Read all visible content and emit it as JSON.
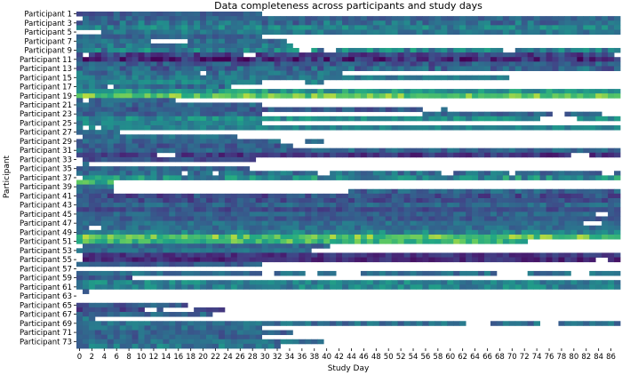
{
  "chart_data": {
    "type": "heatmap",
    "title": "Data completeness across participants and study days",
    "xlabel": "Study Day",
    "ylabel": "Participant",
    "colormap": "viridis",
    "missing_color": "#ffffff",
    "x_ticks": [
      "0",
      "2",
      "4",
      "6",
      "8",
      "10",
      "12",
      "14",
      "16",
      "18",
      "20",
      "22",
      "24",
      "26",
      "28",
      "30",
      "32",
      "34",
      "36",
      "38",
      "40",
      "42",
      "44",
      "46",
      "48",
      "50",
      "52",
      "54",
      "56",
      "58",
      "60",
      "62",
      "64",
      "66",
      "68",
      "70",
      "72",
      "74",
      "76",
      "78",
      "80",
      "82",
      "84",
      "86"
    ],
    "y_tick_labels": [
      "Participant 1",
      "Participant 3",
      "Participant 5",
      "Participant 7",
      "Participant 9",
      "Participant 11",
      "Participant 13",
      "Participant 15",
      "Participant 17",
      "Participant 19",
      "Participant 21",
      "Participant 23",
      "Participant 25",
      "Participant 27",
      "Participant 29",
      "Participant 31",
      "Participant 33",
      "Participant 35",
      "Participant 37",
      "Participant 39",
      "Participant 41",
      "Participant 43",
      "Participant 45",
      "Participant 47",
      "Participant 49",
      "Participant 51",
      "Participant 53",
      "Participant 55",
      "Participant 57",
      "Participant 59",
      "Participant 61",
      "Participant 63",
      "Participant 65",
      "Participant 67",
      "Participant 69",
      "Participant 71",
      "Participant 73"
    ],
    "n_rows": 74,
    "n_days": 88,
    "rows": [
      {
        "base": 0.35,
        "var": 0.1,
        "gaps": [
          [
            30,
            87
          ]
        ]
      },
      {
        "base": 0.4,
        "var": 0.1,
        "gaps": [
          [
            0,
            0
          ]
        ]
      },
      {
        "base": 0.45,
        "var": 0.18,
        "gaps": []
      },
      {
        "base": 0.55,
        "var": 0.15,
        "gaps": []
      },
      {
        "base": 0.5,
        "var": 0.12,
        "gaps": [
          [
            0,
            3
          ]
        ]
      },
      {
        "base": 0.4,
        "var": 0.1,
        "gaps": [
          [
            30,
            87
          ]
        ]
      },
      {
        "base": 0.45,
        "var": 0.12,
        "gaps": [
          [
            12,
            17
          ],
          [
            34,
            87
          ]
        ]
      },
      {
        "base": 0.5,
        "var": 0.15,
        "gaps": [
          [
            35,
            87
          ]
        ]
      },
      {
        "base": 0.55,
        "var": 0.2,
        "gaps": [
          [
            36,
            37
          ],
          [
            40,
            41
          ],
          [
            69,
            70
          ]
        ]
      },
      {
        "base": 0.25,
        "var": 0.15,
        "gaps": [
          [
            1,
            1
          ],
          [
            27,
            28
          ],
          [
            87,
            87
          ]
        ]
      },
      {
        "base": 0.15,
        "var": 0.2,
        "gaps": []
      },
      {
        "base": 0.35,
        "var": 0.15,
        "gaps": []
      },
      {
        "base": 0.4,
        "var": 0.18,
        "gaps": []
      },
      {
        "base": 0.45,
        "var": 0.15,
        "gaps": [
          [
            20,
            20
          ],
          [
            43,
            87
          ]
        ]
      },
      {
        "base": 0.5,
        "var": 0.12,
        "gaps": [
          [
            70,
            87
          ]
        ]
      },
      {
        "base": 0.55,
        "var": 0.12,
        "gaps": [
          [
            30,
            36
          ],
          [
            40,
            87
          ]
        ]
      },
      {
        "base": 0.45,
        "var": 0.15,
        "gaps": [
          [
            5,
            5
          ],
          [
            25,
            87
          ]
        ]
      },
      {
        "base": 0.65,
        "var": 0.15,
        "gaps": []
      },
      {
        "base": 0.85,
        "var": 0.1,
        "gaps": []
      },
      {
        "base": 0.4,
        "var": 0.1,
        "gaps": [
          [
            1,
            1
          ],
          [
            16,
            87
          ]
        ]
      },
      {
        "base": 0.4,
        "var": 0.12,
        "gaps": [
          [
            30,
            87
          ]
        ]
      },
      {
        "base": 0.35,
        "var": 0.12,
        "gaps": [
          [
            56,
            58
          ],
          [
            60,
            87
          ]
        ]
      },
      {
        "base": 0.4,
        "var": 0.12,
        "gaps": [
          [
            30,
            55
          ],
          [
            77,
            78
          ],
          [
            85,
            87
          ]
        ]
      },
      {
        "base": 0.6,
        "var": 0.15,
        "gaps": [
          [
            75,
            80
          ]
        ]
      },
      {
        "base": 0.55,
        "var": 0.15,
        "gaps": [
          [
            30,
            87
          ]
        ]
      },
      {
        "base": 0.55,
        "var": 0.1,
        "gaps": [
          [
            1,
            1
          ],
          [
            3,
            3
          ]
        ]
      },
      {
        "base": 0.4,
        "var": 0.1,
        "gaps": [
          [
            7,
            87
          ]
        ]
      },
      {
        "base": 0.45,
        "var": 0.12,
        "gaps": [
          [
            0,
            0
          ],
          [
            26,
            87
          ]
        ]
      },
      {
        "base": 0.4,
        "var": 0.12,
        "gaps": [
          [
            33,
            36
          ],
          [
            40,
            87
          ]
        ]
      },
      {
        "base": 0.35,
        "var": 0.12,
        "gaps": [
          [
            35,
            87
          ]
        ]
      },
      {
        "base": 0.4,
        "var": 0.12,
        "gaps": []
      },
      {
        "base": 0.2,
        "var": 0.12,
        "gaps": [
          [
            13,
            15
          ],
          [
            80,
            82
          ]
        ]
      },
      {
        "base": 0.3,
        "var": 0.1,
        "gaps": [
          [
            0,
            0
          ],
          [
            29,
            87
          ]
        ]
      },
      {
        "base": 0.5,
        "var": 0.15,
        "gaps": [
          [
            0,
            0
          ],
          [
            2,
            87
          ]
        ]
      },
      {
        "base": 0.4,
        "var": 0.12,
        "gaps": [
          [
            28,
            87
          ]
        ]
      },
      {
        "base": 0.45,
        "var": 0.15,
        "gaps": [
          [
            17,
            17
          ],
          [
            22,
            22
          ],
          [
            39,
            40
          ],
          [
            59,
            60
          ],
          [
            70,
            70
          ],
          [
            85,
            86
          ]
        ]
      },
      {
        "base": 0.6,
        "var": 0.2,
        "gaps": [
          [
            0,
            0
          ]
        ]
      },
      {
        "base": 0.75,
        "var": 0.15,
        "gaps": [
          [
            6,
            87
          ]
        ]
      },
      {
        "base": 0.45,
        "var": 0.12,
        "gaps": [
          [
            6,
            87
          ]
        ]
      },
      {
        "base": 0.4,
        "var": 0.15,
        "gaps": [
          [
            6,
            43
          ]
        ]
      },
      {
        "base": 0.3,
        "var": 0.15,
        "gaps": []
      },
      {
        "base": 0.3,
        "var": 0.12,
        "gaps": []
      },
      {
        "base": 0.4,
        "var": 0.12,
        "gaps": []
      },
      {
        "base": 0.3,
        "var": 0.1,
        "gaps": []
      },
      {
        "base": 0.4,
        "var": 0.1,
        "gaps": [
          [
            84,
            85
          ]
        ]
      },
      {
        "base": 0.35,
        "var": 0.1,
        "gaps": []
      },
      {
        "base": 0.45,
        "var": 0.1,
        "gaps": [
          [
            82,
            84
          ]
        ]
      },
      {
        "base": 0.45,
        "var": 0.1,
        "gaps": [
          [
            2,
            3
          ]
        ]
      },
      {
        "base": 0.55,
        "var": 0.15,
        "gaps": []
      },
      {
        "base": 0.85,
        "var": 0.1,
        "gaps": []
      },
      {
        "base": 0.8,
        "var": 0.12,
        "gaps": [
          [
            73,
            87
          ]
        ]
      },
      {
        "base": 0.4,
        "var": 0.1,
        "gaps": [
          [
            0,
            0
          ],
          [
            41,
            87
          ]
        ]
      },
      {
        "base": 0.45,
        "var": 0.1,
        "gaps": [
          [
            38,
            87
          ]
        ]
      },
      {
        "base": 0.2,
        "var": 0.1,
        "gaps": [
          [
            0,
            0
          ]
        ]
      },
      {
        "base": 0.15,
        "var": 0.1,
        "gaps": [
          [
            0,
            0
          ],
          [
            84,
            85
          ]
        ]
      },
      {
        "base": 0.35,
        "var": 0.1,
        "gaps": [
          [
            30,
            87
          ]
        ]
      },
      {
        "base": 0.4,
        "var": 0.12,
        "gaps": [
          [
            0,
            87
          ]
        ]
      },
      {
        "base": 0.45,
        "var": 0.12,
        "gaps": [
          [
            30,
            31
          ],
          [
            37,
            38
          ],
          [
            42,
            45
          ],
          [
            68,
            72
          ],
          [
            80,
            82
          ]
        ]
      },
      {
        "base": 0.35,
        "var": 0.12,
        "gaps": [
          [
            9,
            87
          ]
        ]
      },
      {
        "base": 0.55,
        "var": 0.15,
        "gaps": []
      },
      {
        "base": 0.55,
        "var": 0.15,
        "gaps": []
      },
      {
        "base": 0.4,
        "var": 0.12,
        "gaps": [
          [
            0,
            0
          ],
          [
            2,
            87
          ]
        ]
      },
      {
        "base": 0.4,
        "var": 0.1,
        "gaps": [
          [
            0,
            87
          ]
        ]
      },
      {
        "base": 0.45,
        "var": 0.1,
        "gaps": [
          [
            0,
            87
          ]
        ]
      },
      {
        "base": 0.35,
        "var": 0.12,
        "gaps": [
          [
            18,
            87
          ]
        ]
      },
      {
        "base": 0.25,
        "var": 0.12,
        "gaps": [
          [
            11,
            12
          ],
          [
            14,
            18
          ],
          [
            24,
            87
          ]
        ]
      },
      {
        "base": 0.4,
        "var": 0.12,
        "gaps": [
          [
            22,
            87
          ]
        ]
      },
      {
        "base": 0.45,
        "var": 0.12,
        "gaps": [
          [
            3,
            87
          ]
        ]
      },
      {
        "base": 0.45,
        "var": 0.12,
        "gaps": [
          [
            63,
            66
          ],
          [
            75,
            77
          ]
        ]
      },
      {
        "base": 0.45,
        "var": 0.12,
        "gaps": [
          [
            30,
            87
          ]
        ]
      },
      {
        "base": 0.4,
        "var": 0.12,
        "gaps": [
          [
            35,
            87
          ]
        ]
      },
      {
        "base": 0.4,
        "var": 0.12,
        "gaps": [
          [
            30,
            87
          ]
        ]
      },
      {
        "base": 0.45,
        "var": 0.12,
        "gaps": [
          [
            40,
            87
          ]
        ]
      },
      {
        "base": 0.5,
        "var": 0.15,
        "gaps": [
          [
            33,
            87
          ]
        ]
      }
    ]
  }
}
